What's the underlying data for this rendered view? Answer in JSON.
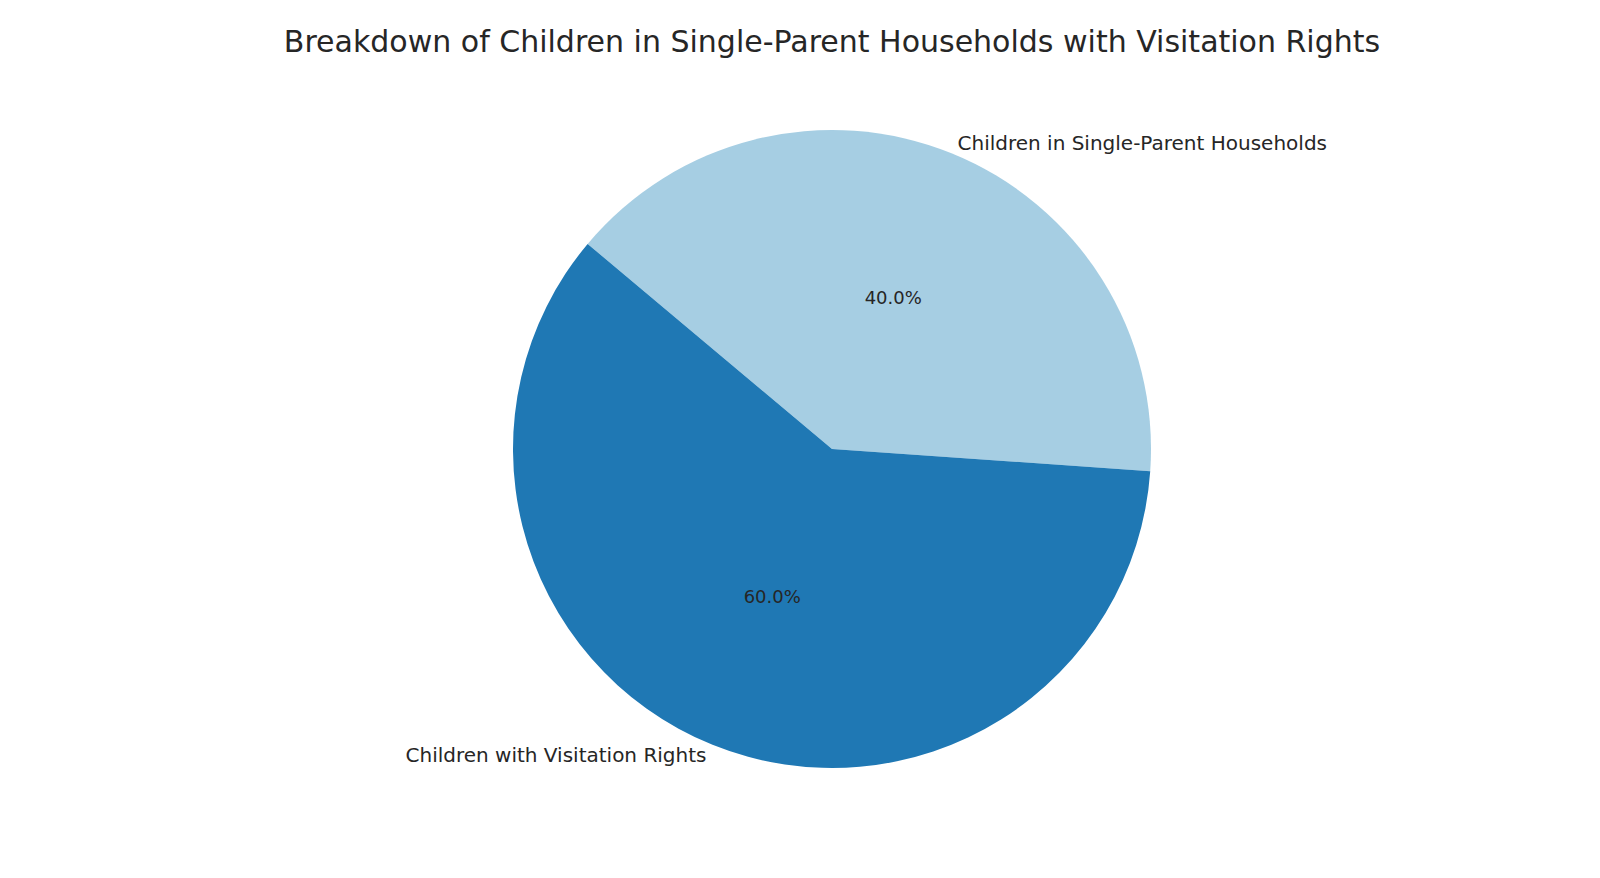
{
  "chart_data": {
    "type": "pie",
    "title": "Breakdown of Children in Single-Parent Households with Visitation Rights",
    "categories": [
      "Children in Single-Parent Households",
      "Children with Visitation Rights"
    ],
    "values": [
      40,
      60
    ],
    "value_labels": [
      "40.0%",
      "60.0%"
    ],
    "colors": [
      "#a6cee3",
      "#1f78b4"
    ],
    "data_labels": true
  }
}
